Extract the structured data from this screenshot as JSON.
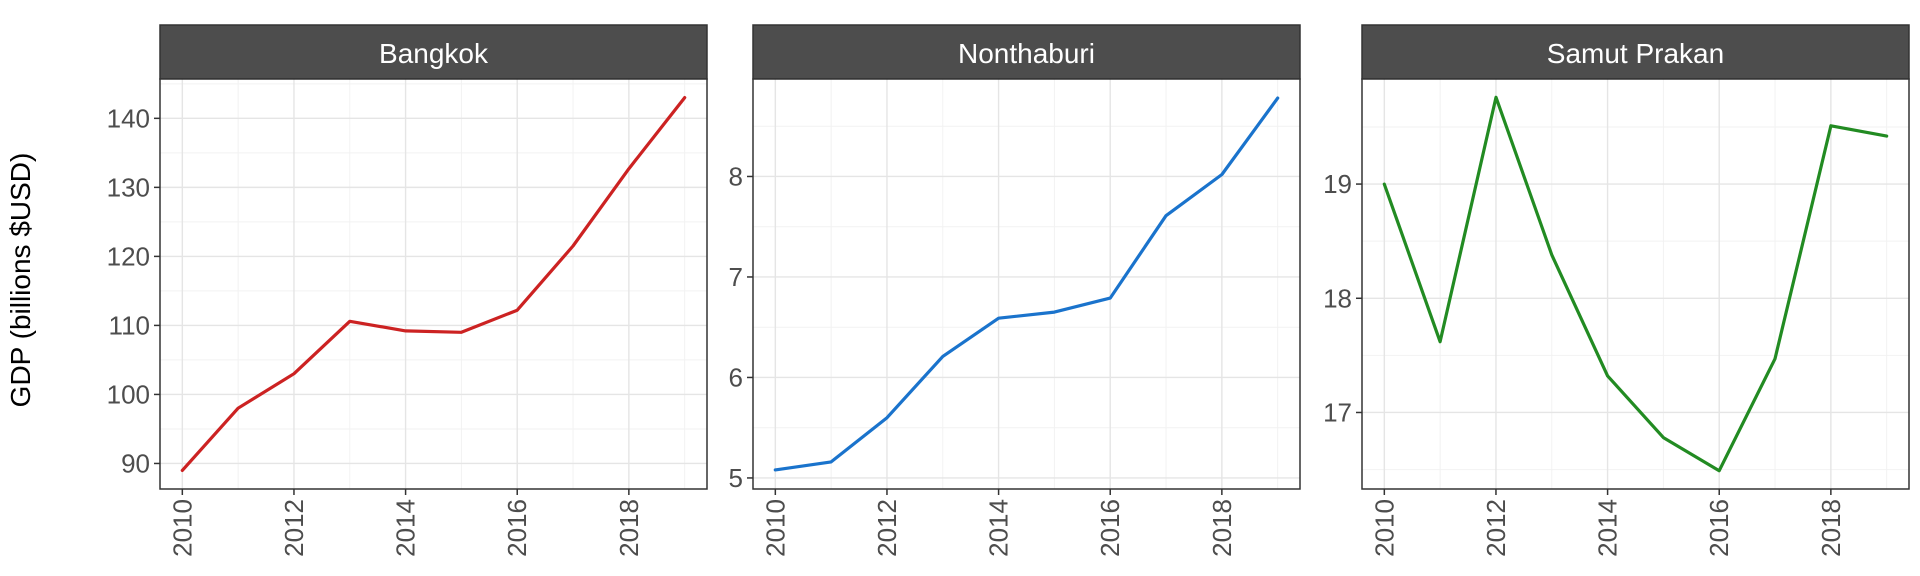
{
  "chart_data": {
    "type": "line",
    "ylabel": "GDP (billions $USD)",
    "xlabel": "",
    "grid": true,
    "legend": "none",
    "x_ticks": [
      2010,
      2012,
      2014,
      2016,
      2018
    ],
    "x": [
      2010,
      2011,
      2012,
      2013,
      2014,
      2015,
      2016,
      2017,
      2018,
      2019
    ],
    "xlim": [
      2009.6,
      2019.4
    ],
    "panels": [
      {
        "name": "Bangkok",
        "color": "#cc2222",
        "values": [
          89.0,
          98.0,
          103.0,
          110.6,
          109.2,
          109.0,
          112.2,
          121.5,
          132.7,
          143.0
        ],
        "ylim": [
          86.3,
          145.7
        ],
        "y_ticks": [
          90,
          100,
          110,
          120,
          130,
          140
        ]
      },
      {
        "name": "Nonthaburi",
        "color": "#1a73cc",
        "values": [
          5.08,
          5.16,
          5.6,
          6.21,
          6.59,
          6.65,
          6.79,
          7.61,
          8.02,
          8.78
        ],
        "ylim": [
          4.89,
          8.97
        ],
        "y_ticks": [
          5,
          6,
          7,
          8
        ]
      },
      {
        "name": "Samut Prakan",
        "color": "#228b22",
        "values": [
          19.0,
          17.62,
          19.76,
          18.38,
          17.32,
          16.78,
          16.49,
          17.47,
          19.51,
          19.42
        ],
        "ylim": [
          16.33,
          19.92
        ],
        "y_ticks": [
          17,
          18,
          19
        ]
      }
    ]
  }
}
